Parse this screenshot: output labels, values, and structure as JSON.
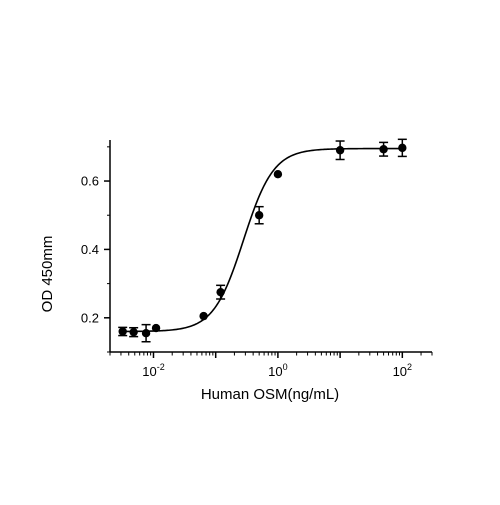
{
  "chart_data": {
    "type": "scatter",
    "xlabel": "Human OSM(ng/mL)",
    "ylabel": "OD 450mm",
    "x_scale": "log",
    "x_ticks": [
      {
        "value": 0.01,
        "base": "10",
        "exp": "-2"
      },
      {
        "value": 1,
        "base": "10",
        "exp": "0"
      },
      {
        "value": 100,
        "base": "10",
        "exp": "2"
      }
    ],
    "y_ticks": [
      "0.2",
      "0.4",
      "0.6"
    ],
    "xlim": [
      0.002,
      300
    ],
    "ylim": [
      0.1,
      0.72
    ],
    "grid": false,
    "points": [
      {
        "x": 0.0032,
        "y": 0.16,
        "err": 0.012
      },
      {
        "x": 0.0048,
        "y": 0.158,
        "err": 0.013
      },
      {
        "x": 0.0076,
        "y": 0.155,
        "err": 0.025
      },
      {
        "x": 0.011,
        "y": 0.17,
        "err": 0
      },
      {
        "x": 0.064,
        "y": 0.205,
        "err": 0
      },
      {
        "x": 0.12,
        "y": 0.275,
        "err": 0.02
      },
      {
        "x": 0.5,
        "y": 0.5,
        "err": 0.025
      },
      {
        "x": 1.0,
        "y": 0.62,
        "err": 0
      },
      {
        "x": 10,
        "y": 0.69,
        "err": 0.027
      },
      {
        "x": 50,
        "y": 0.693,
        "err": 0.02
      },
      {
        "x": 100,
        "y": 0.697,
        "err": 0.025
      }
    ],
    "fit_curve": {
      "bottom": 0.16,
      "top": 0.695,
      "ec50": 0.28,
      "hill": 1.8
    }
  }
}
